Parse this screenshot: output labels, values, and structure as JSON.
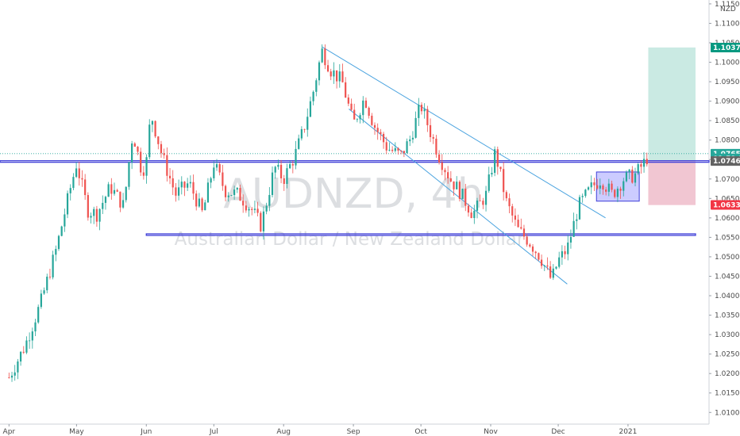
{
  "chart_data": {
    "type": "candlestick",
    "title": "AUDNZD, 4h",
    "subtitle": "Australian Dollar / New Zealand Dollar",
    "currency_label": "NZD",
    "y_ticks": [
      "1.11500",
      "1.11000",
      "1.10500",
      "1.10000",
      "1.09500",
      "1.09000",
      "1.08500",
      "1.08000",
      "1.07500",
      "1.07000",
      "1.06500",
      "1.06000",
      "1.05500",
      "1.05000",
      "1.04500",
      "1.04000",
      "1.03500",
      "1.03000",
      "1.02500",
      "1.02000",
      "1.01500",
      "1.01000"
    ],
    "ylim": [
      1.007,
      1.116
    ],
    "x_labels": [
      "Apr",
      "May",
      "Jun",
      "Jul",
      "Aug",
      "Sep",
      "Oct",
      "Nov",
      "Dec",
      "2021"
    ],
    "series_path": [
      [
        "2020-04-01",
        1.019
      ],
      [
        "2020-04-08",
        1.027
      ],
      [
        "2020-04-15",
        1.038
      ],
      [
        "2020-04-22",
        1.052
      ],
      [
        "2020-04-28",
        1.067
      ],
      [
        "2020-05-01",
        1.074
      ],
      [
        "2020-05-06",
        1.062
      ],
      [
        "2020-05-10",
        1.061
      ],
      [
        "2020-05-16",
        1.068
      ],
      [
        "2020-05-22",
        1.063
      ],
      [
        "2020-05-24",
        1.073
      ],
      [
        "2020-05-26",
        1.082
      ],
      [
        "2020-05-30",
        1.072
      ],
      [
        "2020-06-01",
        1.074
      ],
      [
        "2020-06-03",
        1.087
      ],
      [
        "2020-06-08",
        1.076
      ],
      [
        "2020-06-14",
        1.066
      ],
      [
        "2020-06-20",
        1.069
      ],
      [
        "2020-06-26",
        1.061
      ],
      [
        "2020-07-01",
        1.074
      ],
      [
        "2020-07-06",
        1.067
      ],
      [
        "2020-07-12",
        1.066
      ],
      [
        "2020-07-18",
        1.062
      ],
      [
        "2020-07-22",
        1.058
      ],
      [
        "2020-07-28",
        1.073
      ],
      [
        "2020-08-01",
        1.07
      ],
      [
        "2020-08-06",
        1.076
      ],
      [
        "2020-08-10",
        1.083
      ],
      [
        "2020-08-14",
        1.092
      ],
      [
        "2020-08-18",
        1.103
      ],
      [
        "2020-08-22",
        1.098
      ],
      [
        "2020-08-27",
        1.095
      ],
      [
        "2020-09-01",
        1.084
      ],
      [
        "2020-09-06",
        1.091
      ],
      [
        "2020-09-10",
        1.084
      ],
      [
        "2020-09-16",
        1.078
      ],
      [
        "2020-09-22",
        1.076
      ],
      [
        "2020-09-26",
        1.08
      ],
      [
        "2020-10-01",
        1.089
      ],
      [
        "2020-10-04",
        1.084
      ],
      [
        "2020-10-09",
        1.076
      ],
      [
        "2020-10-14",
        1.07
      ],
      [
        "2020-10-18",
        1.067
      ],
      [
        "2020-10-24",
        1.061
      ],
      [
        "2020-10-30",
        1.066
      ],
      [
        "2020-11-03",
        1.077
      ],
      [
        "2020-11-08",
        1.064
      ],
      [
        "2020-11-13",
        1.057
      ],
      [
        "2020-11-18",
        1.054
      ],
      [
        "2020-11-23",
        1.05
      ],
      [
        "2020-11-28",
        1.044
      ],
      [
        "2020-12-01",
        1.049
      ],
      [
        "2020-12-05",
        1.052
      ],
      [
        "2020-12-10",
        1.063
      ],
      [
        "2020-12-16",
        1.068
      ],
      [
        "2020-12-20",
        1.07
      ],
      [
        "2020-12-25",
        1.066
      ],
      [
        "2020-12-30",
        1.07
      ],
      [
        "2021-01-04",
        1.071
      ],
      [
        "2021-01-08",
        1.074
      ],
      [
        "2021-01-10",
        1.076
      ]
    ],
    "horizontal_levels": [
      {
        "price": 1.0747
      },
      {
        "price": 1.0743
      },
      {
        "price": 1.0559
      },
      {
        "price": 1.0555
      }
    ],
    "trend_lines": [
      {
        "from": [
          "2020-08-18",
          1.104
        ],
        "to": [
          "2020-12-22",
          1.06
        ]
      },
      {
        "from": [
          "2020-08-30",
          1.088
        ],
        "to": [
          "2020-12-05",
          1.043
        ]
      }
    ],
    "range_box": {
      "from_date": "2020-12-18",
      "to_date": "2021-01-06",
      "top": 1.0718,
      "bottom": 1.0643
    },
    "position_tool": {
      "from_date": "2021-01-10",
      "to_date": "2021-01-31",
      "entry": 1.0746,
      "target": 1.1038,
      "stop": 1.0633
    },
    "price_labels": [
      {
        "text": "1.10378",
        "price": 1.10378,
        "color": "#089981"
      },
      {
        "text": "1.07651",
        "price": 1.07651,
        "color": "#26a69a"
      },
      {
        "text": "01:59:21",
        "price": 1.0753,
        "color": "#26a69a"
      },
      {
        "text": "1.07462",
        "price": 1.07462,
        "color": "#636363"
      },
      {
        "text": "1.06333",
        "price": 1.06333,
        "color": "#f23645"
      }
    ]
  },
  "colors": {
    "up": "#26a69a",
    "down": "#ef5350",
    "level": "#3f3fd8",
    "trend": "#4aa3df",
    "box_fill": "#8080ff",
    "target_fill": "#9fd8cc",
    "stop_fill": "#e8a0b4"
  }
}
